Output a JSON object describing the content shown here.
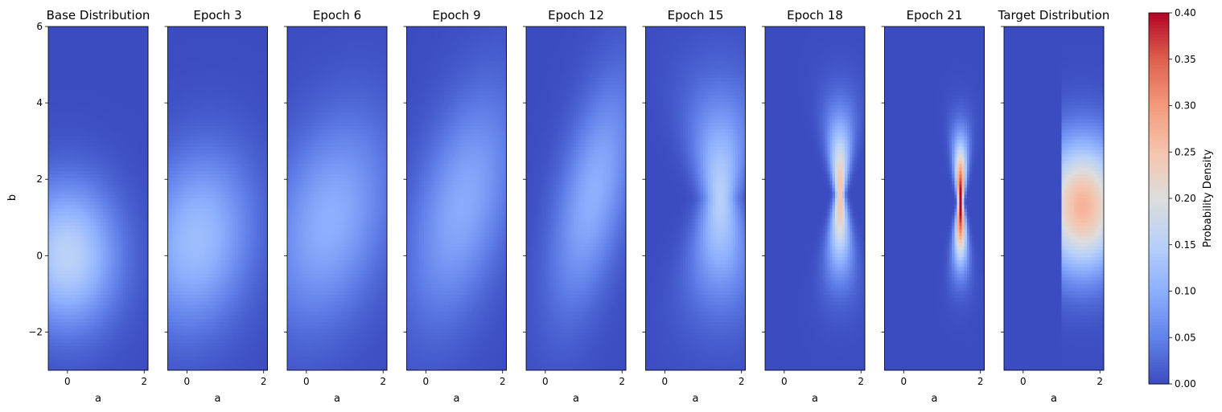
{
  "chart_data": {
    "type": "heatmap",
    "panels": [
      {
        "title": "Base Distribution",
        "kind": "gauss",
        "ca": 0.0,
        "cb": 0.0,
        "sa": 0.9,
        "sb": 1.3,
        "rho": 0.0,
        "peak": 0.155
      },
      {
        "title": "Epoch 3",
        "kind": "gauss",
        "ca": 0.25,
        "cb": 0.4,
        "sa": 1.0,
        "sb": 1.6,
        "rho": 0.15,
        "peak": 0.12
      },
      {
        "title": "Epoch 6",
        "kind": "gauss",
        "ca": 0.6,
        "cb": 0.9,
        "sa": 1.1,
        "sb": 1.9,
        "rho": 0.3,
        "peak": 0.1
      },
      {
        "title": "Epoch 9",
        "kind": "gauss",
        "ca": 0.95,
        "cb": 1.3,
        "sa": 0.95,
        "sb": 2.1,
        "rho": 0.45,
        "peak": 0.095
      },
      {
        "title": "Epoch 12",
        "kind": "gauss",
        "ca": 1.25,
        "cb": 1.6,
        "sa": 0.75,
        "sb": 2.1,
        "rho": 0.55,
        "peak": 0.1
      },
      {
        "title": "Epoch 15",
        "kind": "ridge",
        "ca": 1.45,
        "cb": 1.5,
        "k": 0.16,
        "w0": 0.3,
        "sb": 1.8,
        "peak": 0.15
      },
      {
        "title": "Epoch 18",
        "kind": "ridge",
        "ca": 1.45,
        "cb": 1.6,
        "k": 0.11,
        "w0": 0.08,
        "sb": 1.3,
        "peak": 0.26
      },
      {
        "title": "Epoch 21",
        "kind": "ridge",
        "ca": 1.48,
        "cb": 1.4,
        "k": 0.075,
        "w0": 0.045,
        "sb": 1.0,
        "peak": 0.42
      },
      {
        "title": "Target Distribution",
        "kind": "target",
        "amin": 1.0,
        "ca": 1.55,
        "cb": 1.3,
        "sa": 0.75,
        "sb": 1.2,
        "peak": 0.27
      }
    ],
    "xlabel": "a",
    "ylabel": "b",
    "xlim": [
      -0.5,
      2.1
    ],
    "ylim": [
      -3.0,
      6.0
    ],
    "xticks": [
      0,
      2
    ],
    "yticks": [
      -2,
      0,
      2,
      4,
      6
    ],
    "colormap": "coolwarm",
    "colorbar": {
      "label": "Probability Density",
      "range": [
        0.0,
        0.4
      ],
      "ticks": [
        "0.00",
        "0.05",
        "0.10",
        "0.15",
        "0.20",
        "0.25",
        "0.30",
        "0.35",
        "0.40"
      ]
    },
    "grid": false
  }
}
